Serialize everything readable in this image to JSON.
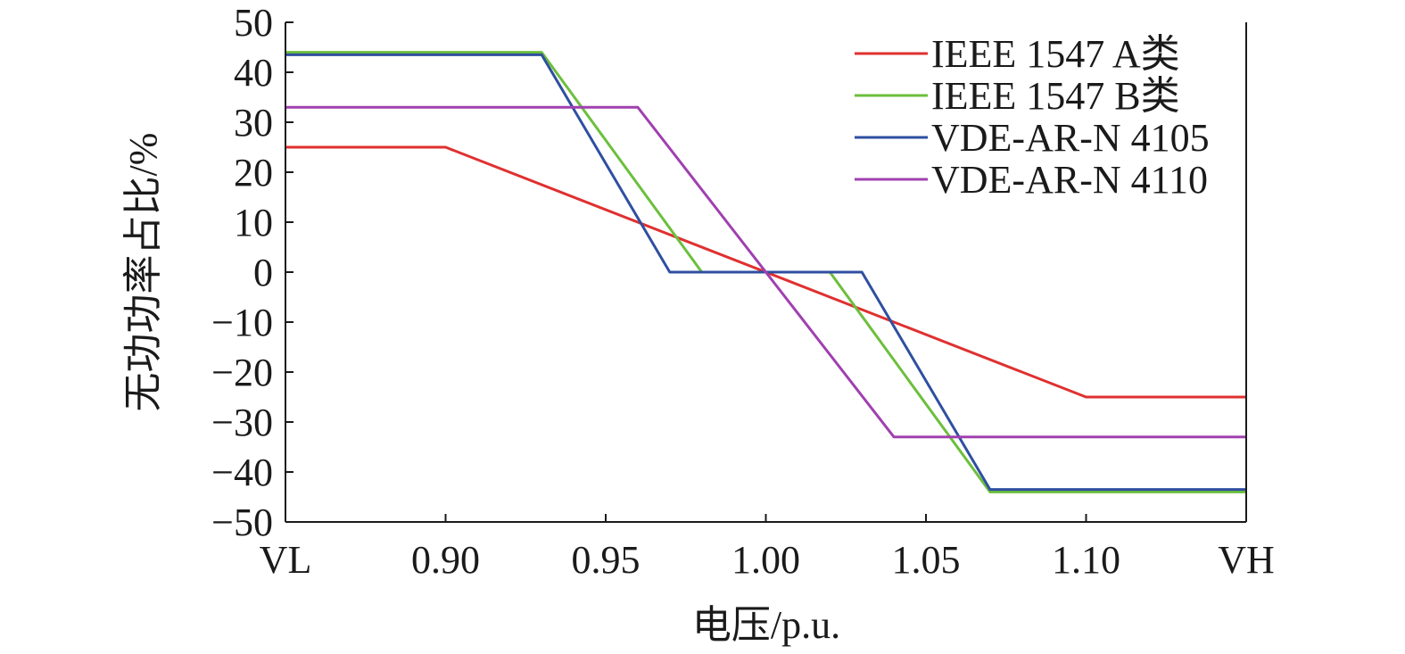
{
  "chart_data": {
    "type": "line",
    "title": "",
    "xlabel": "电压/p.u.",
    "ylabel": "无功功率占比/%",
    "xlim": [
      0.85,
      1.15
    ],
    "ylim": [
      -50,
      50
    ],
    "grid": false,
    "legend_position": "top-right",
    "x_ticks": [
      {
        "value": 0.85,
        "label": "VL"
      },
      {
        "value": 0.9,
        "label": "0.90"
      },
      {
        "value": 0.95,
        "label": "0.95"
      },
      {
        "value": 1.0,
        "label": "1.00"
      },
      {
        "value": 1.05,
        "label": "1.05"
      },
      {
        "value": 1.1,
        "label": "1.10"
      },
      {
        "value": 1.15,
        "label": "VH"
      }
    ],
    "y_ticks": [
      {
        "value": 50,
        "label": "50"
      },
      {
        "value": 40,
        "label": "40"
      },
      {
        "value": 30,
        "label": "30"
      },
      {
        "value": 20,
        "label": "20"
      },
      {
        "value": 10,
        "label": "10"
      },
      {
        "value": 0,
        "label": "0"
      },
      {
        "value": -10,
        "label": "−10"
      },
      {
        "value": -20,
        "label": "−20"
      },
      {
        "value": -30,
        "label": "−30"
      },
      {
        "value": -40,
        "label": "−40"
      },
      {
        "value": -50,
        "label": "−50"
      }
    ],
    "series": [
      {
        "name": "IEEE 1547 A类",
        "color": "#e03030",
        "points": [
          [
            0.85,
            25
          ],
          [
            0.9,
            25
          ],
          [
            1.1,
            -25
          ],
          [
            1.15,
            -25
          ]
        ]
      },
      {
        "name": "IEEE 1547 B类",
        "color": "#6cbf3c",
        "points": [
          [
            0.85,
            44
          ],
          [
            0.93,
            44
          ],
          [
            0.98,
            0
          ],
          [
            1.02,
            0
          ],
          [
            1.07,
            -44
          ],
          [
            1.15,
            -44
          ]
        ]
      },
      {
        "name": "VDE-AR-N 4105",
        "color": "#2f4fa0",
        "points": [
          [
            0.85,
            43.5
          ],
          [
            0.93,
            43.5
          ],
          [
            0.97,
            0
          ],
          [
            1.03,
            0
          ],
          [
            1.07,
            -43.5
          ],
          [
            1.15,
            -43.5
          ]
        ]
      },
      {
        "name": "VDE-AR-N 4110",
        "color": "#a040b0",
        "points": [
          [
            0.85,
            33
          ],
          [
            0.96,
            33
          ],
          [
            1.04,
            -33
          ],
          [
            1.15,
            -33
          ]
        ]
      }
    ]
  }
}
